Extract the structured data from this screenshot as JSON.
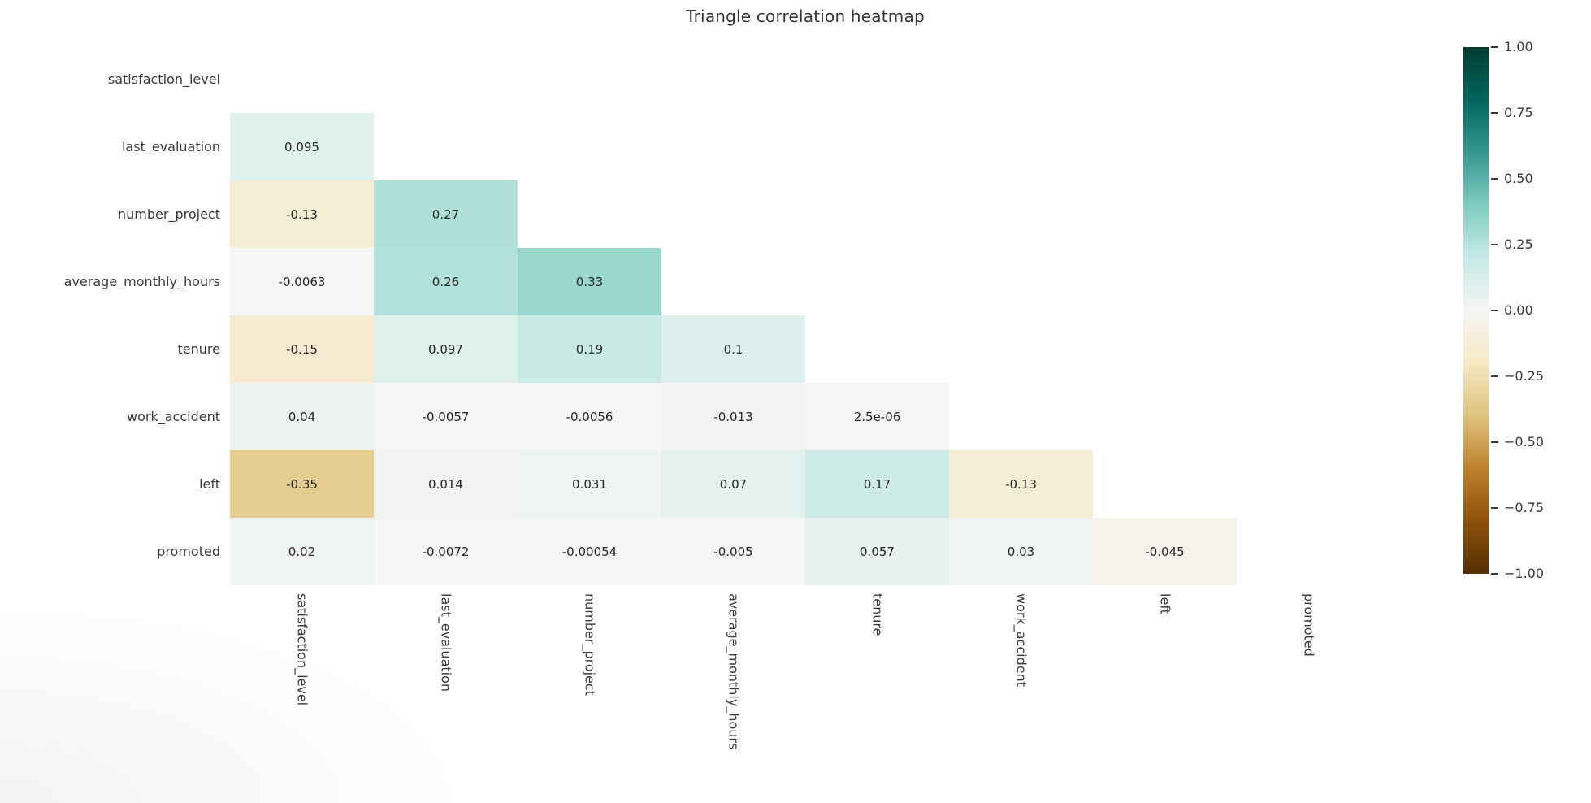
{
  "chart_data": {
    "type": "heatmap",
    "variant": "lower-triangle-correlation",
    "title": "Triangle correlation heatmap",
    "labels": [
      "satisfaction_level",
      "last_evaluation",
      "number_project",
      "average_monthly_hours",
      "tenure",
      "work_accident",
      "left",
      "promoted"
    ],
    "matrix": [
      [
        null,
        null,
        null,
        null,
        null,
        null,
        null,
        null
      ],
      [
        0.095,
        null,
        null,
        null,
        null,
        null,
        null,
        null
      ],
      [
        -0.13,
        0.27,
        null,
        null,
        null,
        null,
        null,
        null
      ],
      [
        -0.0063,
        0.26,
        0.33,
        null,
        null,
        null,
        null,
        null
      ],
      [
        -0.15,
        0.097,
        0.19,
        0.1,
        null,
        null,
        null,
        null
      ],
      [
        0.04,
        -0.0057,
        -0.0056,
        -0.013,
        2.5e-06,
        null,
        null,
        null
      ],
      [
        -0.35,
        0.014,
        0.031,
        0.07,
        0.17,
        -0.13,
        null,
        null
      ],
      [
        0.02,
        -0.0072,
        -0.00054,
        -0.005,
        0.057,
        0.03,
        -0.045,
        null
      ]
    ],
    "annotations": [
      [
        "",
        "",
        "",
        "",
        "",
        "",
        "",
        ""
      ],
      [
        "0.095",
        "",
        "",
        "",
        "",
        "",
        "",
        ""
      ],
      [
        "-0.13",
        "0.27",
        "",
        "",
        "",
        "",
        "",
        ""
      ],
      [
        "-0.0063",
        "0.26",
        "0.33",
        "",
        "",
        "",
        "",
        ""
      ],
      [
        "-0.15",
        "0.097",
        "0.19",
        "0.1",
        "",
        "",
        "",
        ""
      ],
      [
        "0.04",
        "-0.0057",
        "-0.0056",
        "-0.013",
        "2.5e-06",
        "",
        "",
        ""
      ],
      [
        "-0.35",
        "0.014",
        "0.031",
        "0.07",
        "0.17",
        "-0.13",
        "",
        ""
      ],
      [
        "0.02",
        "-0.0072",
        "-0.00054",
        "-0.005",
        "0.057",
        "0.03",
        "-0.045",
        ""
      ]
    ],
    "colormap": {
      "name": "BrBG",
      "vmin": -1,
      "vmax": 1,
      "anchors": [
        [
          0.0,
          "#543005"
        ],
        [
          0.1,
          "#8c510a"
        ],
        [
          0.2,
          "#bf812d"
        ],
        [
          0.3,
          "#dfc27d"
        ],
        [
          0.4,
          "#f6e8c3"
        ],
        [
          0.5,
          "#f5f5f5"
        ],
        [
          0.6,
          "#c7eae5"
        ],
        [
          0.7,
          "#80cdc1"
        ],
        [
          0.8,
          "#35978f"
        ],
        [
          0.9,
          "#01665e"
        ],
        [
          1.0,
          "#003c30"
        ]
      ]
    },
    "colorbar_ticks": [
      {
        "value": 1.0,
        "label": "1.00"
      },
      {
        "value": 0.75,
        "label": "0.75"
      },
      {
        "value": 0.5,
        "label": "0.50"
      },
      {
        "value": 0.25,
        "label": "0.25"
      },
      {
        "value": 0.0,
        "label": "0.00"
      },
      {
        "value": -0.25,
        "label": "−0.25"
      },
      {
        "value": -0.5,
        "label": "−0.50"
      },
      {
        "value": -0.75,
        "label": "−0.75"
      },
      {
        "value": -1.0,
        "label": "−1.00"
      }
    ],
    "legend_position": "right",
    "grid": false,
    "background_color": "#ffffff"
  }
}
